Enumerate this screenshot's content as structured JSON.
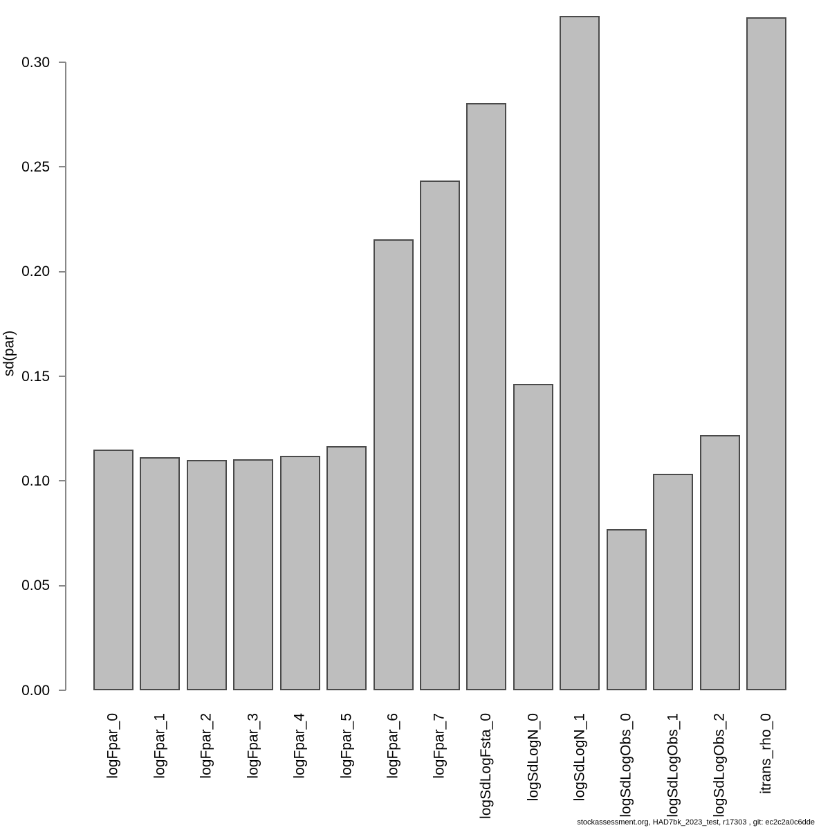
{
  "chart_data": {
    "type": "bar",
    "title": "",
    "xlabel": "",
    "ylabel": "sd(par)",
    "categories": [
      "logFpar_0",
      "logFpar_1",
      "logFpar_2",
      "logFpar_3",
      "logFpar_4",
      "logFpar_5",
      "logFpar_6",
      "logFpar_7",
      "logSdLogFsta_0",
      "logSdLogN_0",
      "logSdLogN_1",
      "logSdLogObs_0",
      "logSdLogObs_1",
      "logSdLogObs_2",
      "itrans_rho_0"
    ],
    "values": [
      0.1151,
      0.1113,
      0.1101,
      0.1104,
      0.1121,
      0.1166,
      0.2156,
      0.2435,
      0.2805,
      0.1465,
      0.3221,
      0.0771,
      0.1035,
      0.1218,
      0.3215
    ],
    "ylim": [
      0,
      0.3
    ],
    "ytick_labels": [
      "0.00",
      "0.05",
      "0.10",
      "0.15",
      "0.20",
      "0.25",
      "0.30"
    ],
    "grid": false,
    "legend": false,
    "bar_fill": "#bebebe",
    "bar_border": "#4a4a4a",
    "axis_color": "#878787",
    "text_color": "#000000"
  },
  "footer": {
    "text": "stockassessment.org, HAD7bk_2023_test, r17303 , git: ec2c2a0c6dde"
  }
}
